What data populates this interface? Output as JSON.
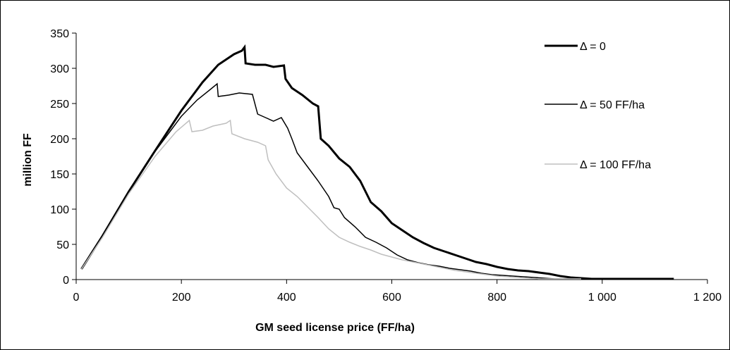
{
  "chart_data": {
    "type": "line",
    "title": "",
    "xlabel": "GM seed license price (FF/ha)",
    "ylabel": "million FF",
    "xlim": [
      0,
      1200
    ],
    "ylim": [
      0,
      350
    ],
    "x_ticks": [
      0,
      200,
      400,
      600,
      800,
      1000,
      1200
    ],
    "x_tick_labels": [
      "0",
      "200",
      "400",
      "600",
      "800",
      "1 000",
      "1 200"
    ],
    "y_ticks": [
      0,
      50,
      100,
      150,
      200,
      250,
      300,
      350
    ],
    "y_tick_labels": [
      "0",
      "50",
      "100",
      "150",
      "200",
      "250",
      "300",
      "350"
    ],
    "grid": false,
    "legend_position": "right",
    "series": [
      {
        "name": "Δ = 0",
        "color": "#000000",
        "style": "thick",
        "points": [
          [
            10,
            15
          ],
          [
            50,
            62
          ],
          [
            100,
            125
          ],
          [
            150,
            183
          ],
          [
            200,
            240
          ],
          [
            240,
            280
          ],
          [
            270,
            305
          ],
          [
            300,
            320
          ],
          [
            315,
            325
          ],
          [
            320,
            330
          ],
          [
            322,
            307
          ],
          [
            340,
            305
          ],
          [
            360,
            305
          ],
          [
            375,
            302
          ],
          [
            395,
            304
          ],
          [
            398,
            285
          ],
          [
            410,
            272
          ],
          [
            430,
            262
          ],
          [
            450,
            250
          ],
          [
            460,
            246
          ],
          [
            465,
            200
          ],
          [
            480,
            190
          ],
          [
            500,
            172
          ],
          [
            520,
            160
          ],
          [
            540,
            140
          ],
          [
            560,
            110
          ],
          [
            580,
            97
          ],
          [
            600,
            80
          ],
          [
            620,
            70
          ],
          [
            640,
            60
          ],
          [
            660,
            52
          ],
          [
            680,
            45
          ],
          [
            700,
            40
          ],
          [
            720,
            35
          ],
          [
            740,
            30
          ],
          [
            760,
            25
          ],
          [
            780,
            22
          ],
          [
            800,
            18
          ],
          [
            820,
            15
          ],
          [
            840,
            13
          ],
          [
            860,
            12
          ],
          [
            880,
            10
          ],
          [
            900,
            8
          ],
          [
            920,
            5
          ],
          [
            940,
            3
          ],
          [
            960,
            2
          ],
          [
            980,
            1
          ],
          [
            1000,
            1
          ],
          [
            1040,
            1
          ],
          [
            1100,
            1
          ],
          [
            1136,
            1
          ]
        ]
      },
      {
        "name": "Δ = 50 FF/ha",
        "color": "#000000",
        "style": "thin",
        "points": [
          [
            10,
            15
          ],
          [
            50,
            62
          ],
          [
            100,
            125
          ],
          [
            150,
            182
          ],
          [
            200,
            232
          ],
          [
            230,
            255
          ],
          [
            255,
            270
          ],
          [
            268,
            278
          ],
          [
            270,
            260
          ],
          [
            290,
            262
          ],
          [
            310,
            265
          ],
          [
            335,
            263
          ],
          [
            345,
            235
          ],
          [
            360,
            230
          ],
          [
            375,
            225
          ],
          [
            390,
            230
          ],
          [
            402,
            215
          ],
          [
            410,
            200
          ],
          [
            420,
            180
          ],
          [
            440,
            160
          ],
          [
            460,
            140
          ],
          [
            480,
            118
          ],
          [
            490,
            102
          ],
          [
            500,
            100
          ],
          [
            510,
            88
          ],
          [
            530,
            75
          ],
          [
            550,
            60
          ],
          [
            570,
            53
          ],
          [
            590,
            45
          ],
          [
            610,
            35
          ],
          [
            630,
            28
          ],
          [
            650,
            24
          ],
          [
            670,
            21
          ],
          [
            690,
            19
          ],
          [
            710,
            16
          ],
          [
            730,
            14
          ],
          [
            750,
            12
          ],
          [
            770,
            9
          ],
          [
            790,
            7
          ],
          [
            810,
            6
          ],
          [
            830,
            5
          ],
          [
            850,
            4
          ],
          [
            870,
            3
          ],
          [
            890,
            2
          ],
          [
            910,
            1
          ],
          [
            940,
            1
          ],
          [
            970,
            1
          ],
          [
            1000,
            1
          ]
        ]
      },
      {
        "name": "Δ = 100 FF/ha",
        "color": "#bfbfbf",
        "style": "thin",
        "points": [
          [
            10,
            15
          ],
          [
            50,
            60
          ],
          [
            100,
            122
          ],
          [
            150,
            175
          ],
          [
            190,
            210
          ],
          [
            215,
            226
          ],
          [
            220,
            210
          ],
          [
            240,
            212
          ],
          [
            260,
            218
          ],
          [
            285,
            222
          ],
          [
            293,
            226
          ],
          [
            296,
            207
          ],
          [
            320,
            200
          ],
          [
            345,
            195
          ],
          [
            360,
            190
          ],
          [
            365,
            170
          ],
          [
            380,
            150
          ],
          [
            400,
            130
          ],
          [
            420,
            118
          ],
          [
            440,
            103
          ],
          [
            460,
            88
          ],
          [
            480,
            72
          ],
          [
            500,
            60
          ],
          [
            520,
            53
          ],
          [
            540,
            47
          ],
          [
            560,
            42
          ],
          [
            580,
            36
          ],
          [
            600,
            32
          ],
          [
            620,
            28
          ],
          [
            640,
            25
          ],
          [
            660,
            22
          ],
          [
            680,
            19
          ],
          [
            700,
            16
          ],
          [
            720,
            13
          ],
          [
            740,
            11
          ],
          [
            760,
            9
          ],
          [
            780,
            7
          ],
          [
            800,
            5
          ],
          [
            820,
            4
          ],
          [
            840,
            3
          ],
          [
            860,
            2
          ],
          [
            880,
            1
          ],
          [
            920,
            1
          ],
          [
            960,
            1
          ]
        ]
      }
    ]
  }
}
